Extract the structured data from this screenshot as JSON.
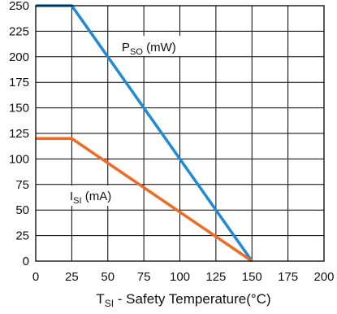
{
  "chart_data": {
    "type": "line",
    "xlabel": {
      "main": "T",
      "sub": "SI",
      "rest": " - Safety Temperature(°C)"
    },
    "ylabel": "",
    "xlim": [
      0,
      200
    ],
    "ylim": [
      0,
      250
    ],
    "xticks": [
      0,
      25,
      50,
      75,
      100,
      125,
      150,
      175,
      200
    ],
    "yticks": [
      0,
      25,
      50,
      75,
      100,
      125,
      150,
      175,
      200,
      225,
      250
    ],
    "grid": true,
    "series": [
      {
        "name": {
          "main": "P",
          "sub": "SO",
          "rest": " (mW)"
        },
        "color": "#1f8ad6",
        "x": [
          0,
          25,
          150
        ],
        "y": [
          250,
          250,
          0
        ]
      },
      {
        "name": {
          "main": "I",
          "sub": "SI",
          "rest": " (mA)"
        },
        "color": "#f06a22",
        "x": [
          0,
          25,
          150
        ],
        "y": [
          120,
          120,
          0
        ]
      }
    ]
  }
}
